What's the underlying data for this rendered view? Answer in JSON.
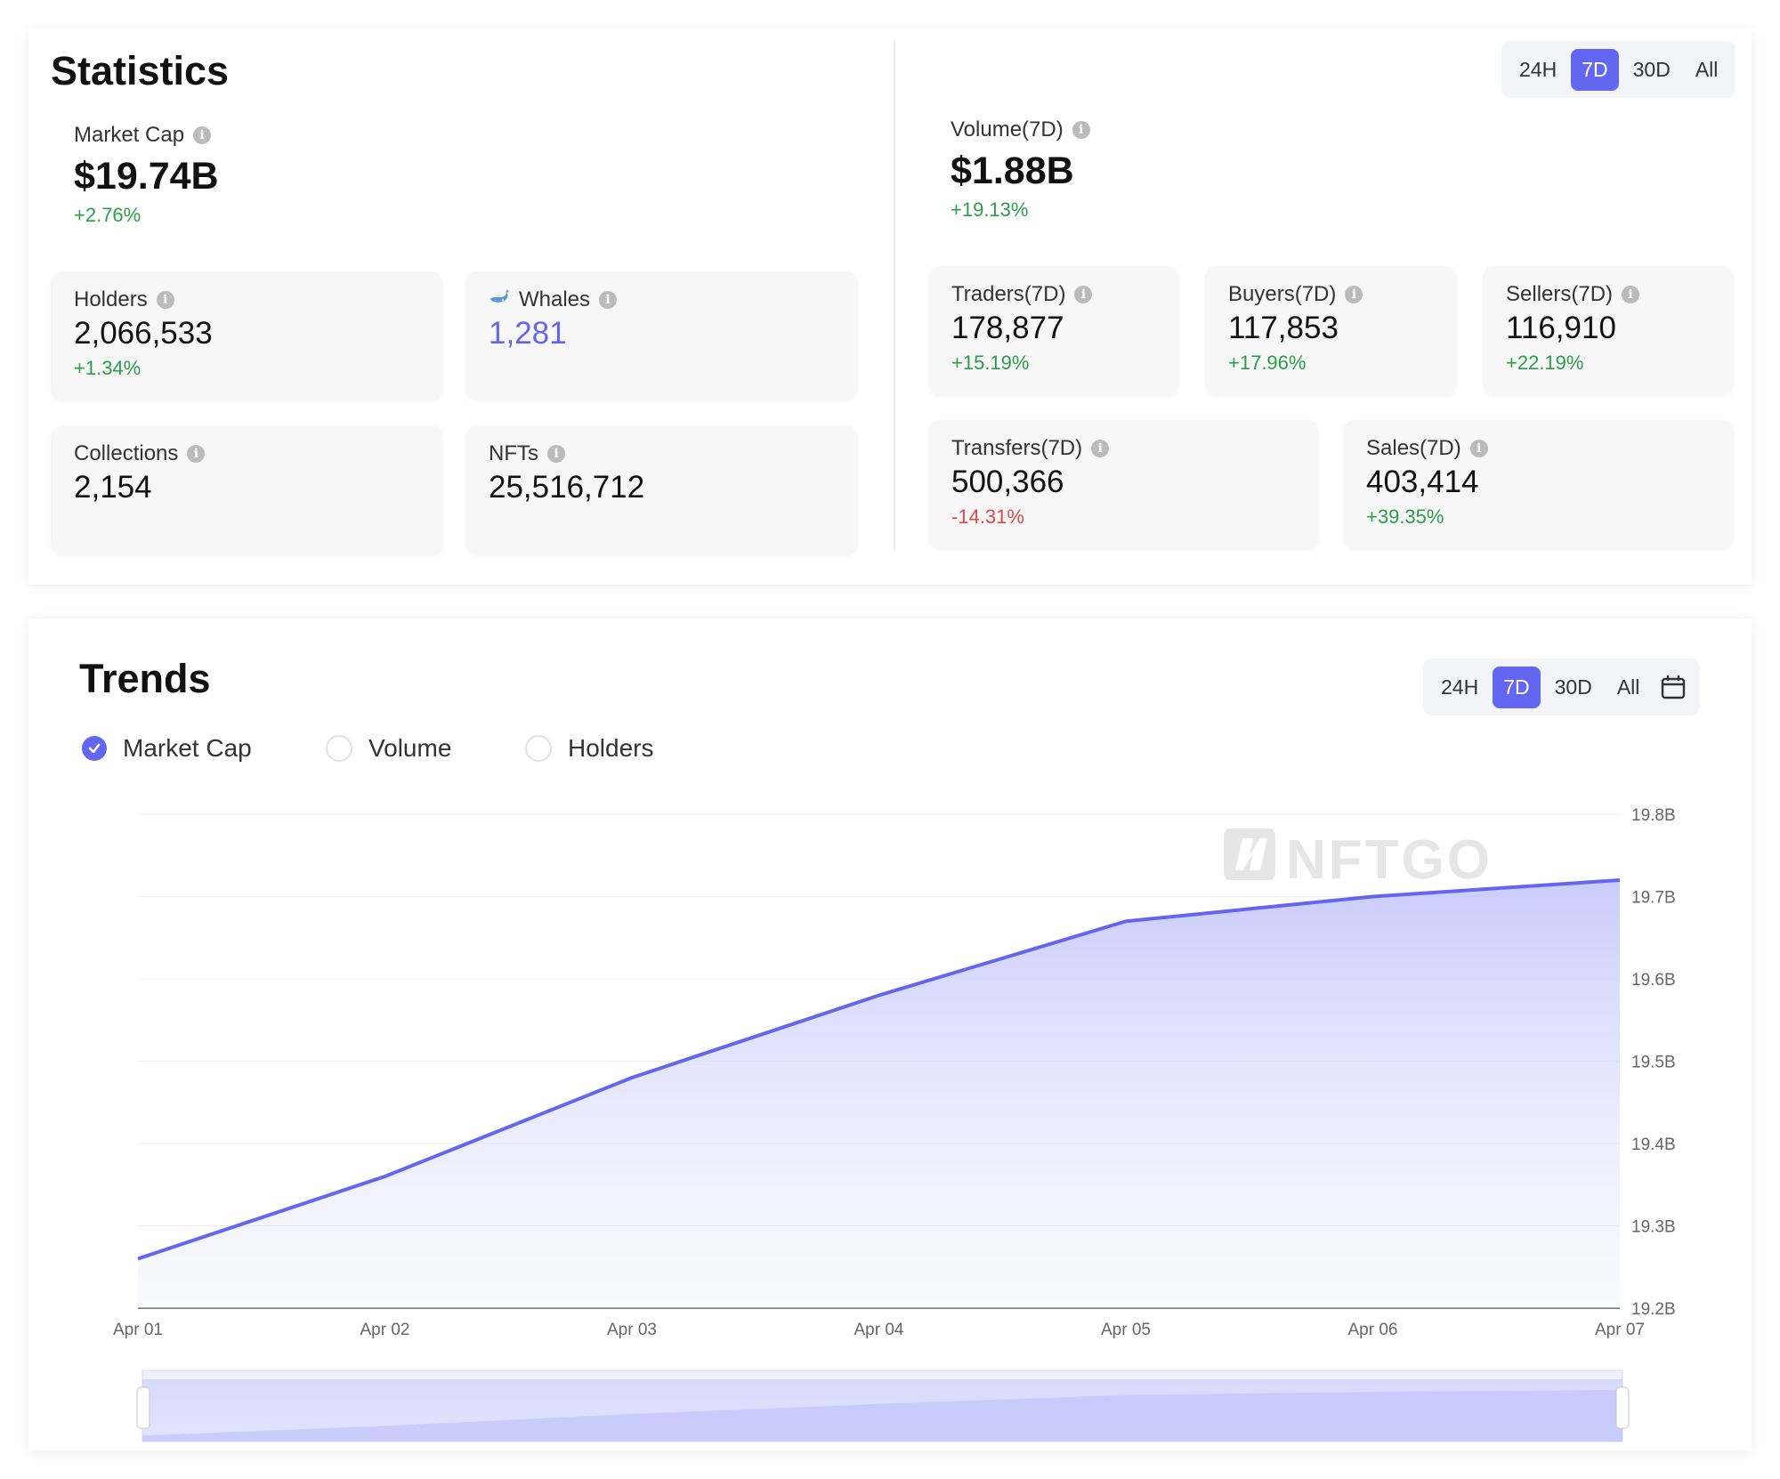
{
  "statistics": {
    "title": "Statistics",
    "periods": [
      "24H",
      "7D",
      "30D",
      "All"
    ],
    "active_period": "7D",
    "market_cap": {
      "label": "Market Cap",
      "value": "$19.74B",
      "change": "+2.76%"
    },
    "holders": {
      "label": "Holders",
      "value": "2,066,533",
      "change": "+1.34%"
    },
    "whales": {
      "label": "Whales",
      "value": "1,281"
    },
    "collections": {
      "label": "Collections",
      "value": "2,154"
    },
    "nfts": {
      "label": "NFTs",
      "value": "25,516,712"
    },
    "volume": {
      "label": "Volume(7D)",
      "value": "$1.88B",
      "change": "+19.13%"
    },
    "traders": {
      "label": "Traders(7D)",
      "value": "178,877",
      "change": "+15.19%"
    },
    "buyers": {
      "label": "Buyers(7D)",
      "value": "117,853",
      "change": "+17.96%"
    },
    "sellers": {
      "label": "Sellers(7D)",
      "value": "116,910",
      "change": "+22.19%"
    },
    "transfers": {
      "label": "Transfers(7D)",
      "value": "500,366",
      "change": "-14.31%"
    },
    "sales": {
      "label": "Sales(7D)",
      "value": "403,414",
      "change": "+39.35%"
    }
  },
  "trends": {
    "title": "Trends",
    "periods": [
      "24H",
      "7D",
      "30D",
      "All"
    ],
    "active_period": "7D",
    "legend": [
      {
        "label": "Market Cap",
        "checked": true
      },
      {
        "label": "Volume",
        "checked": false
      },
      {
        "label": "Holders",
        "checked": false
      }
    ],
    "watermark": "NFTGO"
  },
  "colors": {
    "accent": "#6366f1",
    "positive": "#2a9d4a",
    "negative": "#e04848"
  },
  "chart_data": {
    "type": "area",
    "x": [
      "Apr 01",
      "Apr 02",
      "Apr 03",
      "Apr 04",
      "Apr 05",
      "Apr 06",
      "Apr 07"
    ],
    "series": [
      {
        "name": "Market Cap",
        "values": [
          19.26,
          19.36,
          19.48,
          19.58,
          19.67,
          19.7,
          19.72
        ]
      }
    ],
    "y_ticks": [
      "19.2B",
      "19.3B",
      "19.4B",
      "19.5B",
      "19.6B",
      "19.7B",
      "19.8B"
    ],
    "ylim": [
      19.2,
      19.8
    ],
    "y_unit": "B",
    "grid": true,
    "y_axis_position": "right",
    "title": "",
    "xlabel": "",
    "ylabel": ""
  }
}
